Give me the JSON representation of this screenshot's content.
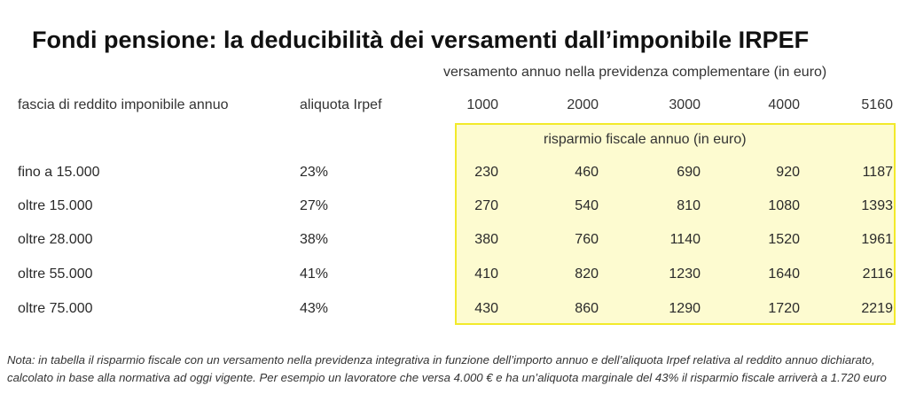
{
  "title": "Fondi pensione: la deducibilità dei versamenti dall’imponibile IRPEF",
  "subtitle": "versamento annuo nella previdenza complementare (in euro)",
  "headers": {
    "fascia": "fascia di reddito imponibile annuo",
    "aliquota": "aliquota Irpef",
    "amounts": [
      "1000",
      "2000",
      "3000",
      "4000",
      "5160"
    ]
  },
  "highlight_label": "risparmio fiscale annuo (in euro)",
  "highlight_color": "#fdfbd0",
  "highlight_border": "#f2ea2a",
  "rows": [
    {
      "fascia": "fino a 15.000",
      "aliquota": "23%",
      "values": [
        "230",
        "460",
        "690",
        "920",
        "1187"
      ]
    },
    {
      "fascia": "oltre 15.000",
      "aliquota": "27%",
      "values": [
        "270",
        "540",
        "810",
        "1080",
        "1393"
      ]
    },
    {
      "fascia": "oltre 28.000",
      "aliquota": "38%",
      "values": [
        "380",
        "760",
        "1140",
        "1520",
        "1961"
      ]
    },
    {
      "fascia": "oltre 55.000",
      "aliquota": "41%",
      "values": [
        "410",
        "820",
        "1230",
        "1640",
        "2116"
      ]
    },
    {
      "fascia": "oltre 75.000",
      "aliquota": "43%",
      "values": [
        "430",
        "860",
        "1290",
        "1720",
        "2219"
      ]
    }
  ],
  "note": "Nota: in tabella il risparmio fiscale con un versamento nella previdenza integrativa in funzione dell’importo annuo e dell’aliquota Irpef relativa al reddito annuo dichiarato, calcolato in base alla normativa ad oggi vigente. Per esempio un lavoratore che versa 4.000 € e ha un’aliquota marginale del 43% il risparmio fiscale arriverà a 1.720 euro"
}
